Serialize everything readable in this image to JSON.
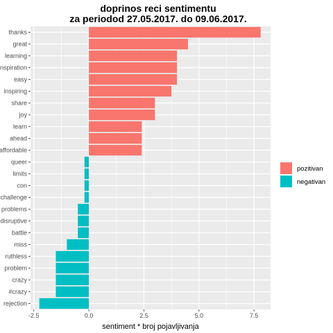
{
  "chart_data": {
    "type": "bar",
    "orientation": "horizontal",
    "title_line1": "doprinos reci sentimentu",
    "title_line2": "za periodod 27.05.2017. do 09.06.2017.",
    "xlabel": "sentiment * broj pojavljivanja",
    "ylabel": "",
    "xlim": [
      -2.65,
      8.25
    ],
    "x_ticks": [
      -2.5,
      0,
      2.5,
      5,
      7.5
    ],
    "x_tick_labels": [
      "-2.5",
      "0.0",
      "2.5",
      "5.0",
      "7.5"
    ],
    "grid": true,
    "legend_position": "right",
    "categories": [
      "thanks",
      "great",
      "learning",
      "inspiration",
      "easy",
      "inspiring",
      "share",
      "joy",
      "learn",
      "ahead",
      "affordable",
      "queer",
      "limits",
      "con",
      "challenge",
      "problems",
      "disruptive",
      "battle",
      "miss",
      "ruthless",
      "problem",
      "crazy",
      "#crazy",
      "rejection"
    ],
    "values": [
      7.8,
      4.5,
      4.0,
      4.0,
      4.0,
      3.75,
      3.0,
      3.0,
      2.4,
      2.4,
      2.4,
      -0.2,
      -0.2,
      -0.2,
      -0.2,
      -0.5,
      -0.5,
      -0.5,
      -1.0,
      -1.5,
      -1.5,
      -1.5,
      -1.5,
      -2.25
    ],
    "series": [
      {
        "name": "pozitivan",
        "color": "#F8766D"
      },
      {
        "name": "negativan",
        "color": "#00BFC4"
      }
    ]
  }
}
